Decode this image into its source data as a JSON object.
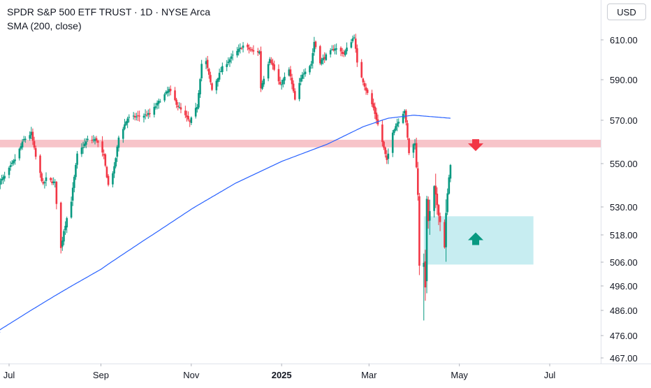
{
  "legend": {
    "title": "SPDR S&P 500 ETF TRUST · 1D · NYSE Arca",
    "indicator": "SMA (200, close)"
  },
  "currency_button": "USD",
  "chart_data": {
    "type": "candlestick",
    "x_axis": {
      "ticks": [
        {
          "label": "Jul",
          "date": "2024-07-01",
          "bold": false
        },
        {
          "label": "Sep",
          "date": "2024-09-01",
          "bold": false
        },
        {
          "label": "Nov",
          "date": "2024-11-01",
          "bold": false
        },
        {
          "label": "2025",
          "date": "2025-01-01",
          "bold": true
        },
        {
          "label": "Mar",
          "date": "2025-03-01",
          "bold": false
        },
        {
          "label": "May",
          "date": "2025-05-01",
          "bold": false
        },
        {
          "label": "Jul",
          "date": "2025-07-01",
          "bold": false
        }
      ]
    },
    "y_axis": {
      "ticks": [
        "610.00",
        "590.00",
        "570.00",
        "550.00",
        "530.00",
        "518.00",
        "506.00",
        "496.00",
        "486.00",
        "476.00",
        "467.00"
      ]
    },
    "price_anchors": [
      [
        "2024-06-24",
        541
      ],
      [
        "2024-06-28",
        544
      ],
      [
        "2024-07-05",
        552
      ],
      [
        "2024-07-11",
        561
      ],
      [
        "2024-07-16",
        564
      ],
      [
        "2024-07-19",
        553
      ],
      [
        "2024-07-24",
        540
      ],
      [
        "2024-07-26",
        543
      ],
      [
        "2024-08-01",
        541
      ],
      [
        "2024-08-02",
        532
      ],
      [
        "2024-08-05",
        512
      ],
      [
        "2024-08-07",
        520
      ],
      [
        "2024-08-12",
        533
      ],
      [
        "2024-08-16",
        554
      ],
      [
        "2024-08-23",
        561
      ],
      [
        "2024-08-29",
        561
      ],
      [
        "2024-09-03",
        553
      ],
      [
        "2024-09-06",
        540
      ],
      [
        "2024-09-10",
        548
      ],
      [
        "2024-09-13",
        562
      ],
      [
        "2024-09-19",
        571
      ],
      [
        "2024-09-27",
        572
      ],
      [
        "2024-10-04",
        573
      ],
      [
        "2024-10-11",
        580
      ],
      [
        "2024-10-17",
        585
      ],
      [
        "2024-10-23",
        577
      ],
      [
        "2024-10-31",
        569
      ],
      [
        "2024-11-05",
        577
      ],
      [
        "2024-11-08",
        598
      ],
      [
        "2024-11-11",
        599
      ],
      [
        "2024-11-15",
        585
      ],
      [
        "2024-11-22",
        596
      ],
      [
        "2024-11-29",
        602
      ],
      [
        "2024-12-06",
        607
      ],
      [
        "2024-12-13",
        604
      ],
      [
        "2024-12-17",
        604
      ],
      [
        "2024-12-18",
        586
      ],
      [
        "2024-12-24",
        601
      ],
      [
        "2024-12-31",
        587
      ],
      [
        "2025-01-06",
        595
      ],
      [
        "2025-01-10",
        580
      ],
      [
        "2025-01-15",
        593
      ],
      [
        "2025-01-21",
        598
      ],
      [
        "2025-01-23",
        609
      ],
      [
        "2025-01-27",
        599
      ],
      [
        "2025-01-31",
        602
      ],
      [
        "2025-02-06",
        606
      ],
      [
        "2025-02-12",
        603
      ],
      [
        "2025-02-19",
        612
      ],
      [
        "2025-02-21",
        598
      ],
      [
        "2025-02-27",
        585
      ],
      [
        "2025-03-04",
        576
      ],
      [
        "2025-03-10",
        560
      ],
      [
        "2025-03-13",
        551
      ],
      [
        "2025-03-17",
        565
      ],
      [
        "2025-03-25",
        575
      ],
      [
        "2025-03-28",
        555
      ],
      [
        "2025-04-01",
        560
      ],
      [
        "2025-04-03",
        536
      ],
      [
        "2025-04-04",
        505
      ],
      [
        "2025-04-07",
        505
      ],
      [
        "2025-04-08",
        496
      ],
      [
        "2025-04-09",
        533
      ],
      [
        "2025-04-10",
        524
      ],
      [
        "2025-04-14",
        539
      ],
      [
        "2025-04-17",
        527
      ],
      [
        "2025-04-21",
        513
      ],
      [
        "2025-04-22",
        527
      ],
      [
        "2025-04-23",
        536
      ],
      [
        "2025-04-25",
        550
      ]
    ],
    "sma_200_anchors": [
      [
        "2024-06-24",
        478
      ],
      [
        "2024-08-01",
        492
      ],
      [
        "2024-09-01",
        503
      ],
      [
        "2024-10-01",
        516
      ],
      [
        "2024-11-01",
        529
      ],
      [
        "2024-12-01",
        541
      ],
      [
        "2025-01-01",
        551
      ],
      [
        "2025-02-01",
        559
      ],
      [
        "2025-02-25",
        567
      ],
      [
        "2025-03-14",
        571
      ],
      [
        "2025-03-31",
        572.5
      ],
      [
        "2025-04-25",
        571
      ]
    ],
    "resistance_zone": {
      "price_low": 557.5,
      "price_high": 561,
      "color": "#f7c4c9"
    },
    "support_zone": {
      "start": "2025-04-07",
      "end": "2025-06-20",
      "price_low": 505,
      "price_high": 526,
      "color": "#c7edf1"
    },
    "markers": [
      {
        "name": "sell-arrow",
        "direction": "down",
        "date": "2025-05-12",
        "price": 559,
        "color": "#f23645"
      },
      {
        "name": "buy-arrow",
        "direction": "up",
        "date": "2025-05-12",
        "price": 516,
        "color": "#089981"
      }
    ],
    "colors": {
      "up": "#089981",
      "down": "#f23645",
      "sma": "#2962ff",
      "axis_text": "#131722",
      "grid": "#e0e3eb"
    }
  }
}
